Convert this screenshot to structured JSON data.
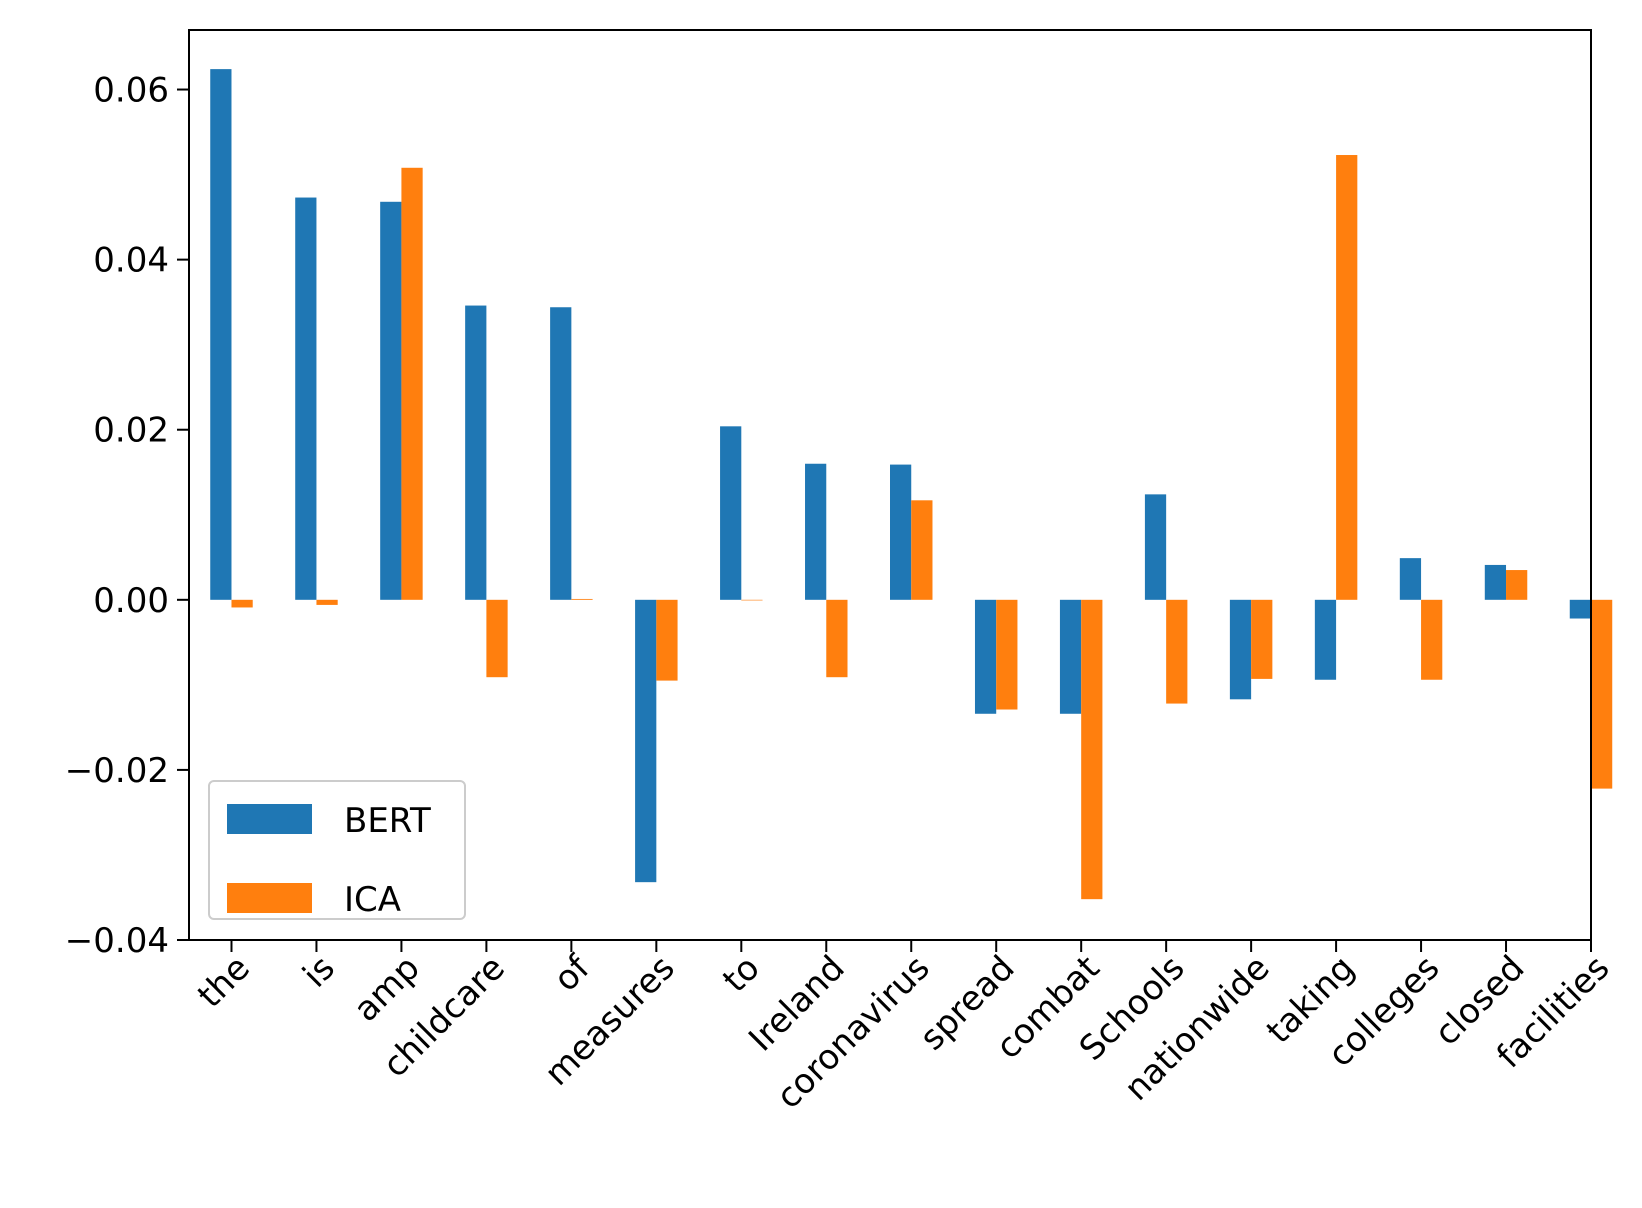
{
  "chart_data": {
    "type": "bar",
    "categories": [
      "the",
      "is",
      "amp",
      "childcare",
      "of",
      "measures",
      "to",
      "Ireland",
      "coronavirus",
      "spread",
      "combat",
      "Schools",
      "nationwide",
      "taking",
      "colleges",
      "closed",
      "facilities"
    ],
    "series": [
      {
        "name": "BERT",
        "color": "#1f77b4",
        "values": [
          0.0624,
          0.0473,
          0.0468,
          0.0346,
          0.0344,
          -0.0332,
          0.0204,
          0.016,
          0.0159,
          -0.0134,
          -0.0134,
          0.0124,
          -0.0117,
          -0.0094,
          0.0049,
          0.0041,
          -0.0022
        ]
      },
      {
        "name": "ICA",
        "color": "#ff7f0e",
        "values": [
          -0.0009,
          -0.0006,
          0.0508,
          -0.0091,
          0.0001,
          -0.0095,
          0.0,
          -0.0091,
          0.0117,
          -0.0129,
          -0.0352,
          -0.0122,
          -0.0093,
          0.0523,
          -0.0094,
          0.0035,
          -0.0222
        ]
      }
    ],
    "ylim": [
      -0.04,
      0.067
    ],
    "yticks": [
      -0.04,
      -0.02,
      0.0,
      0.02,
      0.04,
      0.06
    ],
    "ytick_labels": [
      "−0.04",
      "−0.02",
      "0.00",
      "0.02",
      "0.04",
      "0.06"
    ],
    "legend_position": "lower-left",
    "grid": false
  }
}
